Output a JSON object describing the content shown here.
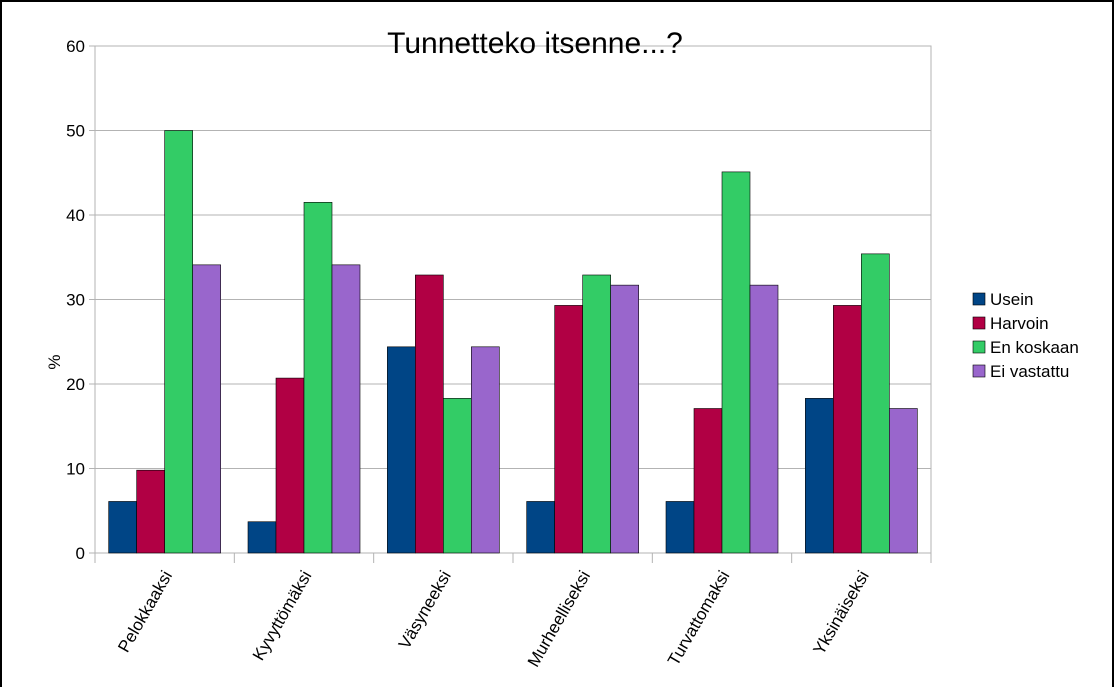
{
  "chart_data": {
    "type": "bar",
    "title": "Tunnetteko itsenne...?",
    "xlabel": "",
    "ylabel": "%",
    "ylim": [
      0,
      60
    ],
    "yticks": [
      0,
      10,
      20,
      30,
      40,
      50,
      60
    ],
    "grid": true,
    "legend": "right",
    "categories": [
      "Pelokkaaksi",
      "Kyvyttömäksi",
      "Väsyneeksi",
      "Murheelliseksi",
      "Turvattomaksi",
      "Yksinäiseksi"
    ],
    "series": [
      {
        "name": "Usein",
        "color": "#004586",
        "values": [
          6.1,
          3.7,
          24.4,
          6.1,
          6.1,
          18.3
        ]
      },
      {
        "name": "Harvoin",
        "color": "#b10044",
        "values": [
          9.8,
          20.7,
          32.9,
          29.3,
          17.1,
          29.3
        ]
      },
      {
        "name": "En koskaan",
        "color": "#33cc66",
        "values": [
          50.0,
          41.5,
          18.3,
          32.9,
          45.1,
          35.4
        ]
      },
      {
        "name": "Ei vastattu",
        "color": "#9966cc",
        "values": [
          34.1,
          34.1,
          24.4,
          31.7,
          31.7,
          17.1
        ]
      }
    ]
  }
}
